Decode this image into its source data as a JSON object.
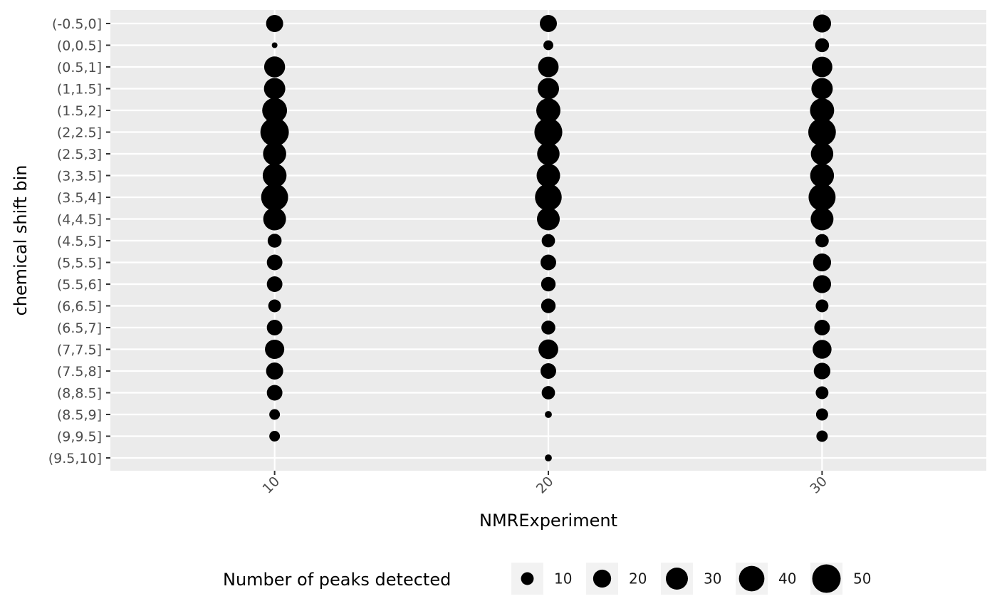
{
  "chart_data": {
    "type": "scatter",
    "subtype": "bubble",
    "xlabel": "NMRExperiment",
    "ylabel": "chemical shift bin",
    "x_ticks": [
      10,
      20,
      30
    ],
    "xlim": [
      4,
      36
    ],
    "y_categories": [
      "(-0.5,0]",
      "(0,0.5]",
      "(0.5,1]",
      "(1,1.5]",
      "(1.5,2]",
      "(2,2.5]",
      "(2.5,3]",
      "(3,3.5]",
      "(3.5,4]",
      "(4,4.5]",
      "(4.5,5]",
      "(5,5.5]",
      "(5.5,6]",
      "(6,6.5]",
      "(6.5,7]",
      "(7,7.5]",
      "(7.5,8]",
      "(8,8.5]",
      "(8.5,9]",
      "(9,9.5]",
      "(9.5,10]"
    ],
    "size_variable": "Number of peaks detected",
    "series": [
      {
        "x": 10,
        "sizes": [
          18,
          2,
          27,
          28,
          38,
          50,
          33,
          35,
          45,
          32,
          12,
          15,
          15,
          10,
          15,
          23,
          18,
          15,
          7,
          7,
          null
        ]
      },
      {
        "x": 20,
        "sizes": [
          18,
          6,
          26,
          28,
          36,
          48,
          31,
          34,
          44,
          32,
          11,
          15,
          13,
          13,
          12,
          24,
          15,
          11,
          3,
          null,
          3
        ]
      },
      {
        "x": 30,
        "sizes": [
          20,
          12,
          26,
          28,
          36,
          47,
          31,
          35,
          45,
          32,
          11,
          20,
          20,
          10,
          15,
          22,
          17,
          10,
          9,
          8,
          null
        ]
      }
    ],
    "legend": {
      "title": "Number of peaks detected",
      "values": [
        10,
        20,
        30,
        40,
        50
      ],
      "position": "bottom"
    },
    "panel_background": "#ebebeb",
    "grid_color": "#ffffff",
    "point_color": "#000000",
    "grid": true
  }
}
